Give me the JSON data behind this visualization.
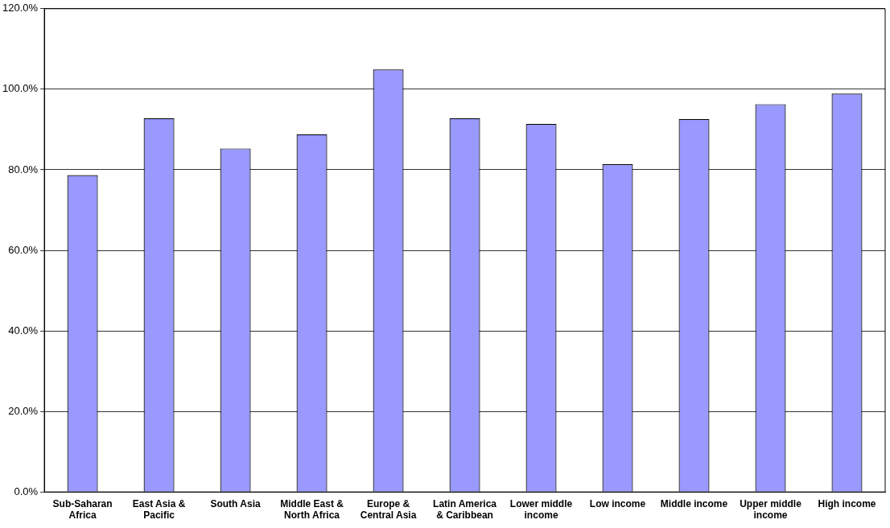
{
  "chart_data": {
    "type": "bar",
    "categories": [
      "Sub-Saharan Africa",
      "East Asia & Pacific",
      "South Asia",
      "Middle East & North Africa",
      "Europe & Central Asia",
      "Latin America & Caribbean",
      "Lower middle income",
      "Low income",
      "Middle income",
      "Upper middle income",
      "High income"
    ],
    "values": [
      78.7,
      92.8,
      85.3,
      88.8,
      104.9,
      92.8,
      91.4,
      81.4,
      92.6,
      96.3,
      98.9
    ],
    "color": "#9999ff",
    "ylim": [
      0,
      120
    ],
    "yticks": [
      {
        "value": 0,
        "label": "0.0%"
      },
      {
        "value": 20,
        "label": "20.0%"
      },
      {
        "value": 40,
        "label": "40.0%"
      },
      {
        "value": 60,
        "label": "60.0%"
      },
      {
        "value": 80,
        "label": "80.0%"
      },
      {
        "value": 100,
        "label": "100.0%"
      },
      {
        "value": 120,
        "label": "120.0%"
      }
    ],
    "grid": "y",
    "legend": false
  }
}
